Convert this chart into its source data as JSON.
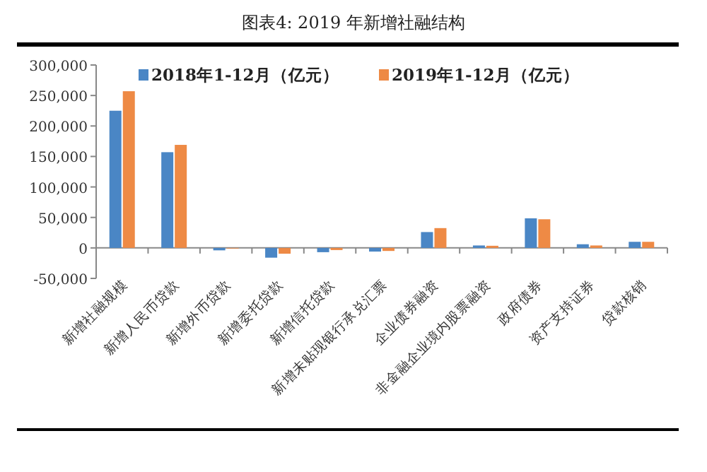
{
  "chart_data": {
    "type": "bar",
    "title": "图表4:  2019 年新增社融结构",
    "categories": [
      "新增社融规模",
      "新增人民币贷款",
      "新增外币贷款",
      "新增委托贷款",
      "新增信托贷款",
      "新增未贴现银行承兑汇票",
      "企业债券融资",
      "非金融企业境内股票融资",
      "政府债券",
      "资产支持证券",
      "贷款核销"
    ],
    "series": [
      {
        "name": "2018年1-12月（亿元）",
        "color": "#4a86c5",
        "values": [
          225000,
          157000,
          -4000,
          -16000,
          -7000,
          -6000,
          26000,
          4000,
          48500,
          6000,
          10000
        ]
      },
      {
        "name": "2019年1-12月（亿元）",
        "color": "#ee8a45",
        "values": [
          257000,
          169000,
          -1000,
          -9500,
          -3500,
          -5000,
          32500,
          3500,
          47000,
          4000,
          10000
        ]
      }
    ],
    "ylim": [
      -50000,
      300000
    ],
    "yticks": [
      {
        "value": -50000,
        "label": "-50,000"
      },
      0,
      {
        "value": 50000,
        "label": "50,000"
      },
      {
        "value": 100000,
        "label": "100,000"
      },
      {
        "value": 150000,
        "label": "150,000"
      },
      {
        "value": 200000,
        "label": "200,000"
      },
      {
        "value": 250000,
        "label": "250,000"
      },
      {
        "value": 300000,
        "label": "300,000"
      }
    ],
    "legend": "top"
  }
}
